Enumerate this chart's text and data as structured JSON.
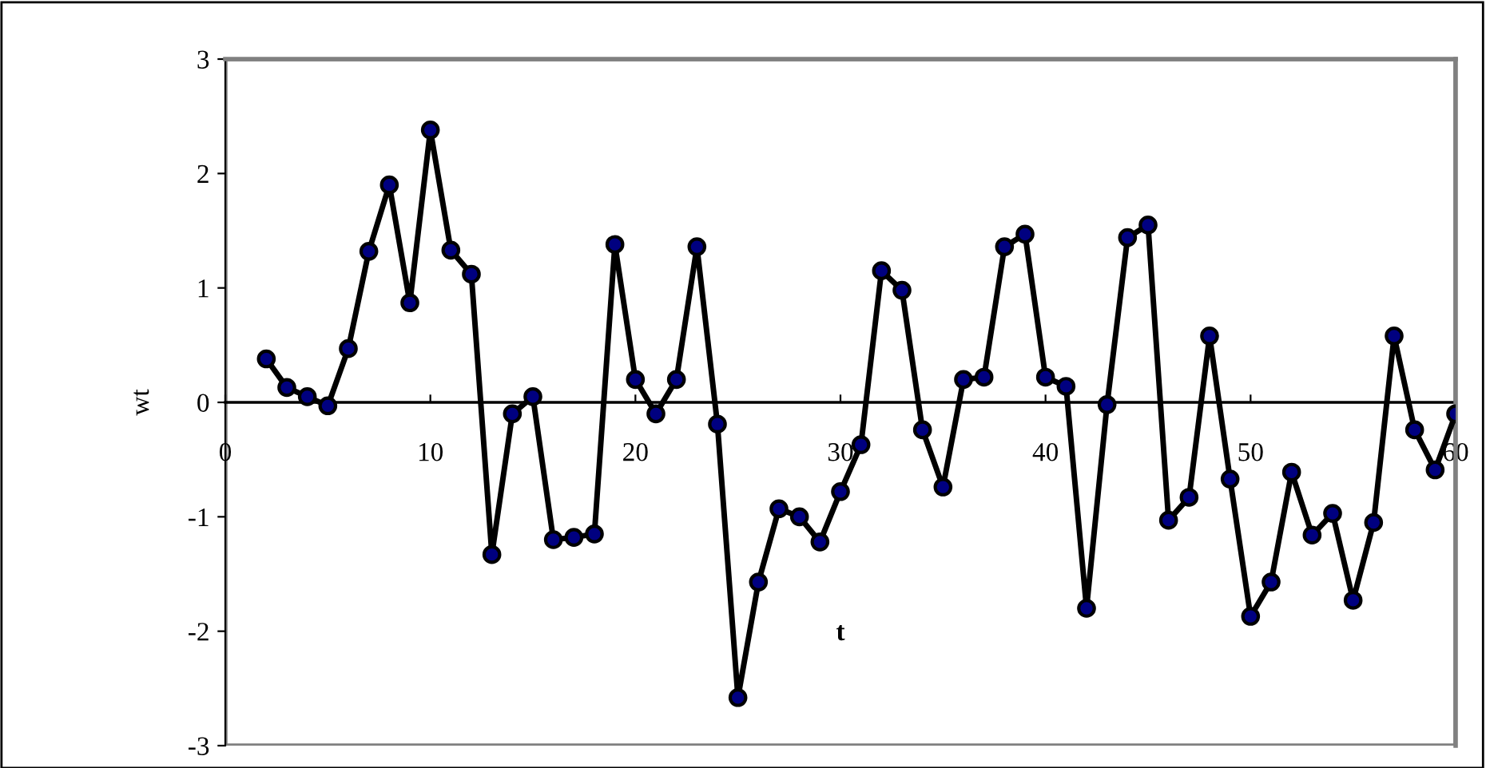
{
  "chart_data": {
    "type": "line",
    "xlabel": "t",
    "ylabel": "wt",
    "xlim": [
      0,
      60
    ],
    "xticks": [
      0,
      10,
      20,
      30,
      40,
      50,
      60
    ],
    "ylim": [
      -3,
      3
    ],
    "yticks": [
      -3,
      -2,
      -1,
      0,
      1,
      2,
      3
    ],
    "x": [
      2,
      3,
      4,
      5,
      6,
      7,
      8,
      9,
      10,
      11,
      12,
      13,
      14,
      15,
      16,
      17,
      18,
      19,
      20,
      21,
      22,
      23,
      24,
      25,
      26,
      27,
      28,
      29,
      30,
      31,
      32,
      33,
      34,
      35,
      36,
      37,
      38,
      39,
      40,
      41,
      42,
      43,
      44,
      45,
      46,
      47,
      48,
      49,
      50,
      51,
      52,
      53,
      54,
      55,
      56,
      57,
      58,
      59,
      60
    ],
    "series": [
      {
        "color": "#000080",
        "values": [
          0.38,
          0.13,
          0.05,
          -0.03,
          0.47,
          1.32,
          1.9,
          0.87,
          2.38,
          1.33,
          1.12,
          -1.33,
          -0.1,
          0.05,
          -1.2,
          -1.18,
          -1.15,
          1.38,
          0.2,
          -0.1,
          0.2,
          1.36,
          -0.19,
          -2.58,
          -1.57,
          -0.93,
          -1.0,
          -1.22,
          -0.78,
          -0.37,
          1.15,
          0.98,
          -0.24,
          -0.74,
          0.2,
          0.22,
          1.36,
          1.47,
          0.22,
          0.14,
          -1.8,
          -0.02,
          1.44,
          1.55,
          -1.03,
          -0.83,
          0.58,
          -0.67,
          -1.87,
          -1.57,
          -0.61,
          -1.16,
          -0.97,
          -1.73,
          -1.05,
          0.58,
          -0.24,
          -0.59,
          -0.1
        ]
      }
    ],
    "marker": "circle",
    "line_style": "solid",
    "grid": false,
    "legend": false
  }
}
